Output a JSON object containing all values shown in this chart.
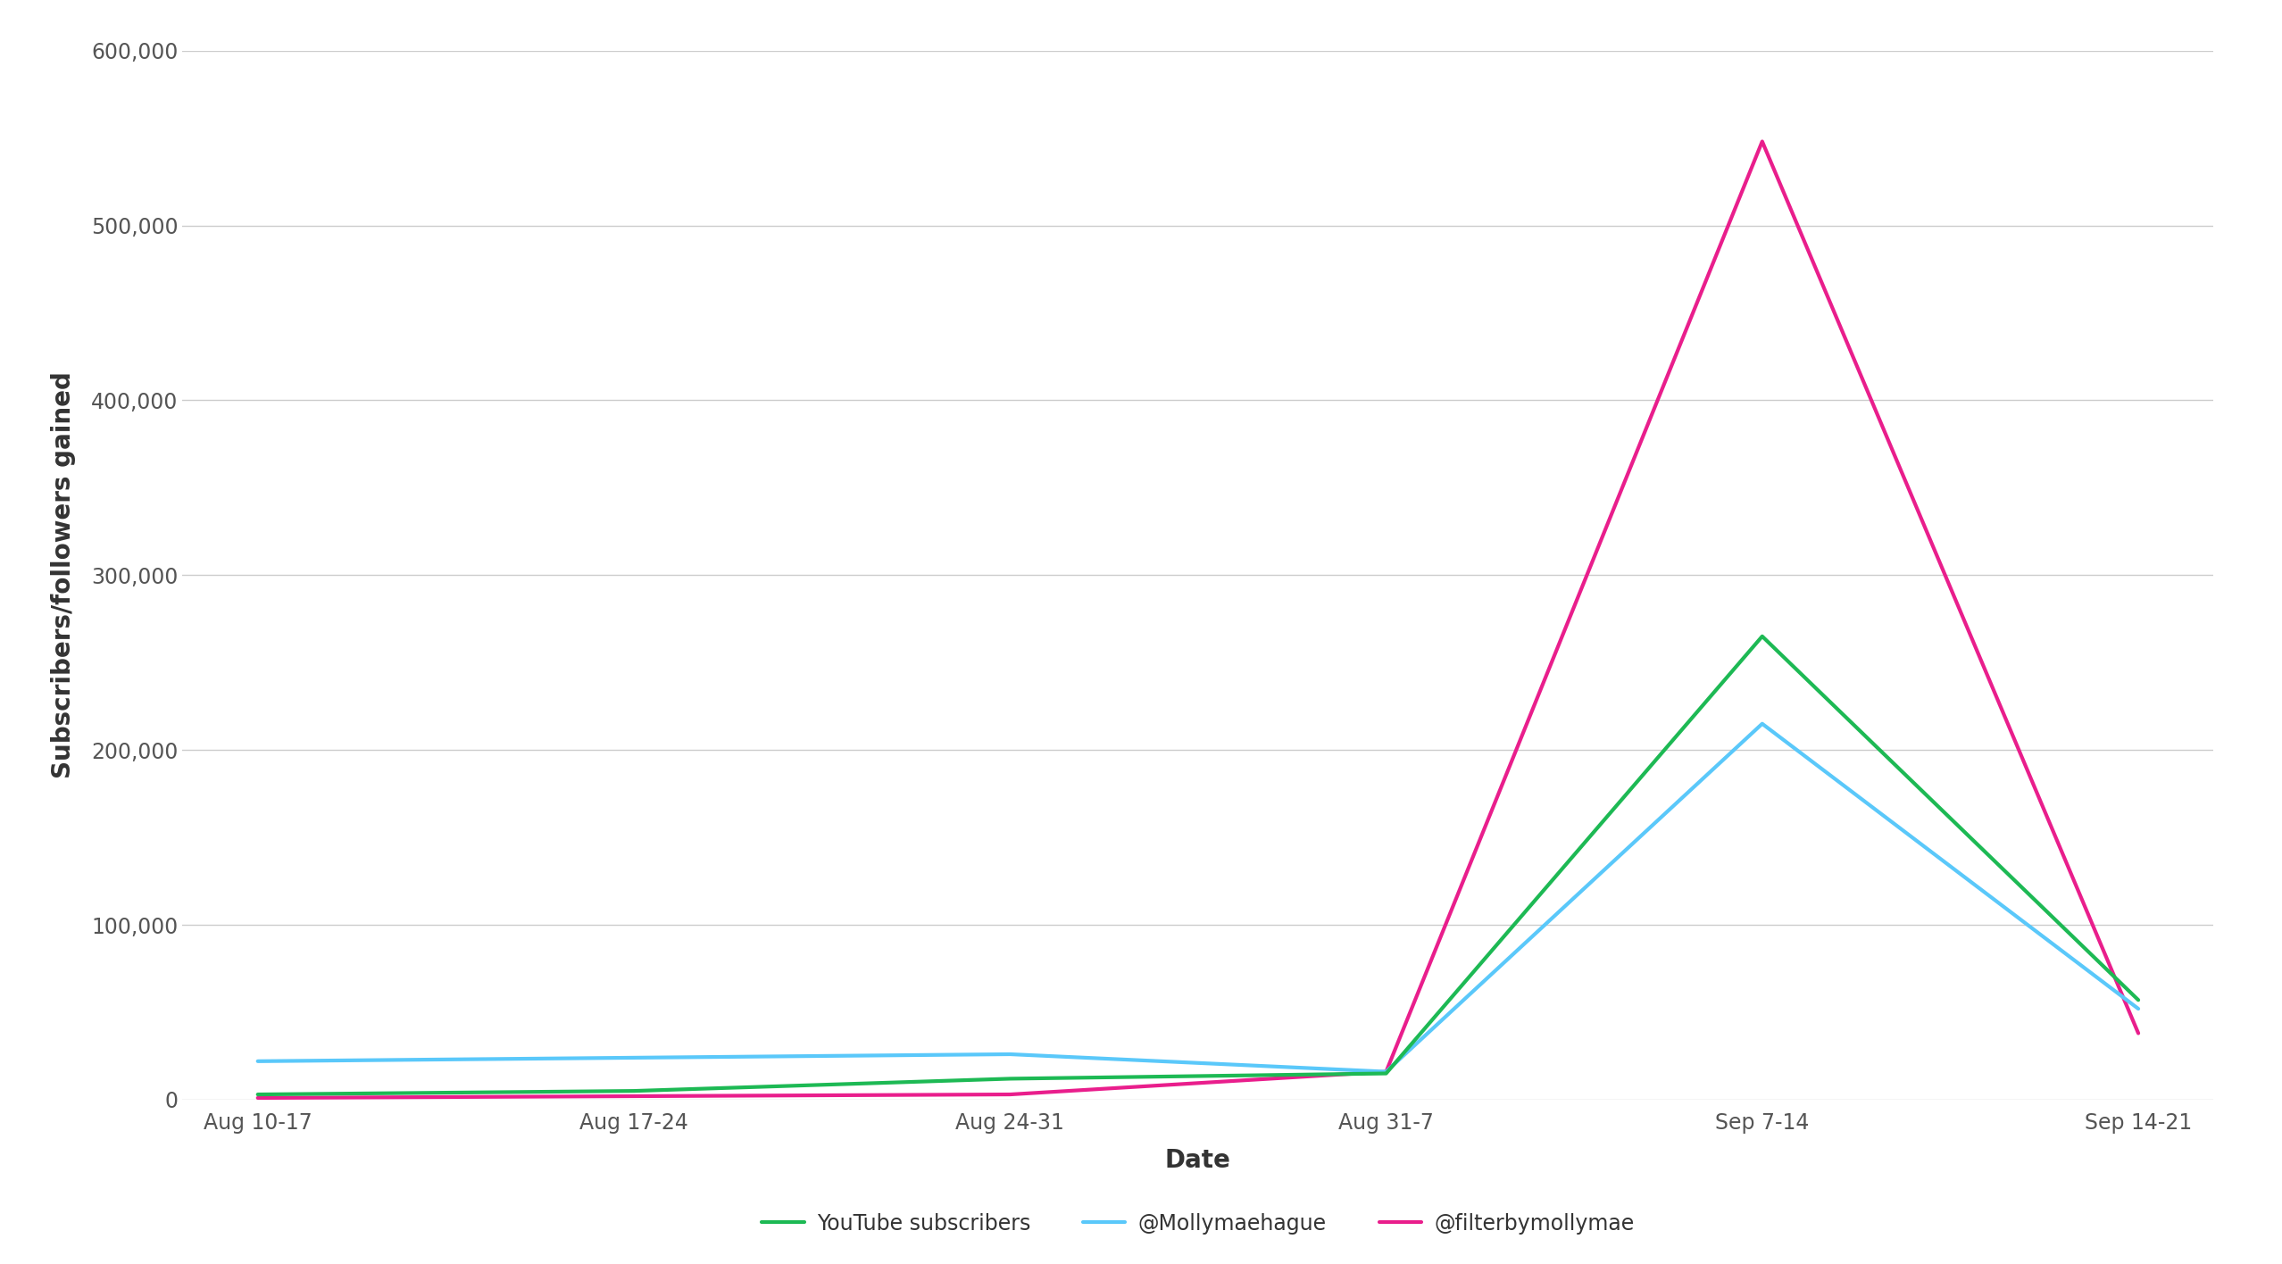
{
  "x_labels": [
    "Aug 10-17",
    "Aug 17-24",
    "Aug 24-31",
    "Aug 31-7",
    "Sep 7-14",
    "Sep 14-21"
  ],
  "youtube_subscribers": [
    3000,
    5000,
    12000,
    15000,
    265000,
    57000
  ],
  "mollymaehague": [
    22000,
    24000,
    26000,
    16000,
    215000,
    52000
  ],
  "filterbymollymae": [
    1000,
    2000,
    3000,
    16000,
    548000,
    38000
  ],
  "line_colors": {
    "youtube": "#1db954",
    "mollymaehague": "#5ac8fa",
    "filterbymollymae": "#e91e8c"
  },
  "ylabel": "Subscribers/followers gained",
  "xlabel": "Date",
  "ylim": [
    0,
    600000
  ],
  "yticks": [
    0,
    100000,
    200000,
    300000,
    400000,
    500000,
    600000
  ],
  "legend_labels": [
    "YouTube subscribers",
    "@Mollymaehague",
    "@filterbymollymae"
  ],
  "background_color": "#ffffff",
  "grid_color": "#cccccc",
  "tick_color": "#555555",
  "axis_label_color": "#333333",
  "line_width": 3.0,
  "ylabel_fontsize": 20,
  "xlabel_fontsize": 20,
  "tick_fontsize": 17,
  "legend_fontsize": 17
}
